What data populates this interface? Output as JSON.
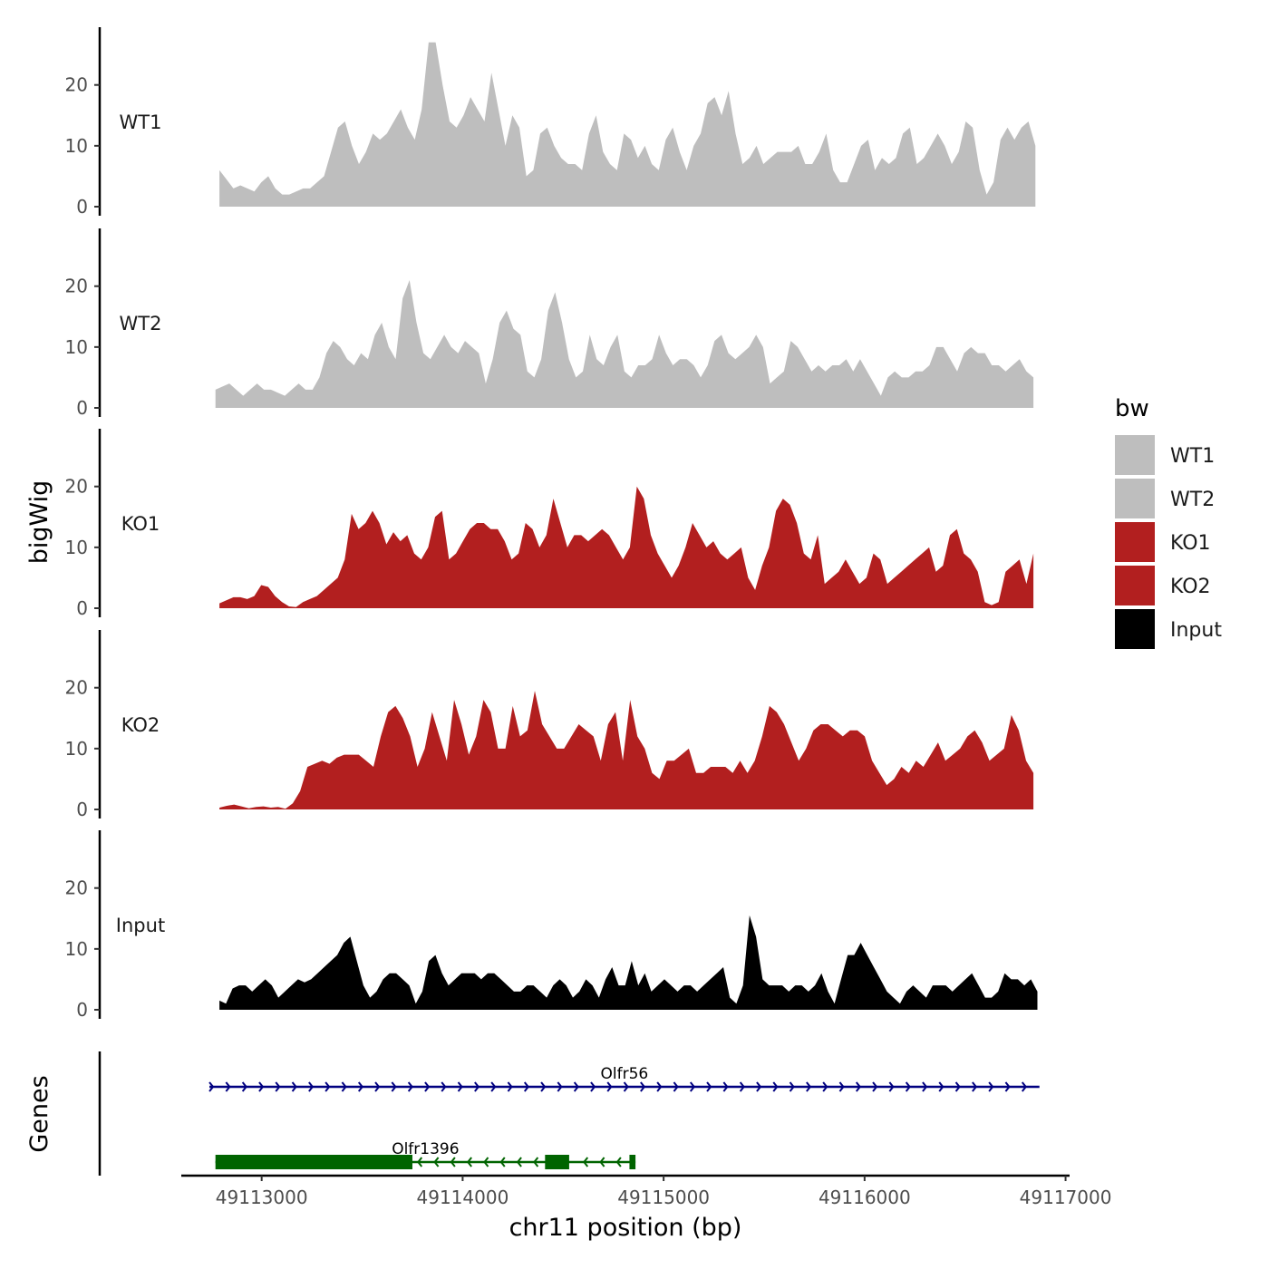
{
  "chart_data": {
    "type": "area",
    "y_axis_title": "bigWig",
    "genes_axis_title": "Genes",
    "x_axis_title": "chr11 position (bp)",
    "x_range": [
      49112600,
      49117020
    ],
    "x_ticks": [
      49113000,
      49114000,
      49115000,
      49116000,
      49117000
    ],
    "x_tick_labels": [
      "49113000",
      "49114000",
      "49115000",
      "49116000",
      "49117000"
    ],
    "y_range": [
      0,
      28
    ],
    "y_ticks": [
      0,
      10,
      20
    ],
    "y_tick_labels": [
      "0",
      "10",
      "20"
    ],
    "legend": {
      "title": "bw",
      "entries": [
        {
          "label": "WT1",
          "color": "#bebebe"
        },
        {
          "label": "WT2",
          "color": "#bebebe"
        },
        {
          "label": "KO1",
          "color": "#b21f1f"
        },
        {
          "label": "KO2",
          "color": "#b21f1f"
        },
        {
          "label": "Input",
          "color": "#000000"
        }
      ]
    },
    "tracks": [
      {
        "name": "WT1",
        "color": "#bebebe",
        "x_start": 49112790,
        "x_end": 49116850,
        "values": [
          6,
          4.5,
          3,
          3.5,
          3,
          2.5,
          4,
          5,
          3,
          2,
          2,
          2.5,
          3,
          3,
          4,
          5,
          9,
          13,
          14,
          10,
          7,
          9,
          12,
          11,
          12,
          14,
          16,
          13,
          11,
          16,
          27,
          27,
          20,
          14,
          13,
          15,
          18,
          16,
          14,
          22,
          16,
          10,
          15,
          13,
          5,
          6,
          12,
          13,
          10,
          8,
          7,
          7,
          6,
          12,
          15,
          9,
          7,
          6,
          12,
          11,
          8,
          10,
          7,
          6,
          11,
          13,
          9,
          6,
          10,
          12,
          17,
          18,
          15,
          19,
          12,
          7,
          8,
          10,
          7,
          8,
          9,
          9,
          9,
          10,
          7,
          7,
          9,
          12,
          6,
          4,
          4,
          7,
          10,
          11,
          6,
          8,
          7,
          8,
          12,
          13,
          7,
          8,
          10,
          12,
          10,
          7,
          9,
          14,
          13,
          6,
          2,
          4,
          11,
          13,
          11,
          13,
          14,
          10
        ],
        "label_color": "#1a1a1a"
      },
      {
        "name": "WT2",
        "color": "#bebebe",
        "x_start": 49112770,
        "x_end": 49116840,
        "values": [
          3,
          3.5,
          4,
          3,
          2,
          3,
          4,
          3,
          3,
          2.5,
          2,
          3,
          4,
          3,
          3,
          5,
          9,
          11,
          10,
          8,
          7,
          9,
          8,
          12,
          14,
          10,
          8,
          18,
          21,
          14,
          9,
          8,
          10,
          12,
          10,
          9,
          11,
          10,
          9,
          4,
          8,
          14,
          16,
          13,
          12,
          6,
          5,
          8,
          16,
          19,
          14,
          8,
          5,
          6,
          12,
          8,
          7,
          10,
          12,
          6,
          5,
          7,
          7,
          8,
          12,
          9,
          7,
          8,
          8,
          7,
          5,
          7,
          11,
          12,
          9,
          8,
          9,
          10,
          12,
          10,
          4,
          5,
          6,
          11,
          10,
          8,
          6,
          7,
          6,
          7,
          7,
          8,
          6,
          8,
          6,
          4,
          2,
          5,
          6,
          5,
          5,
          6,
          6,
          7,
          10,
          10,
          8,
          6,
          9,
          10,
          9,
          9,
          7,
          7,
          6,
          7,
          8,
          6,
          5
        ],
        "label_color": "#1a1a1a"
      },
      {
        "name": "KO1",
        "color": "#b21f1f",
        "x_start": 49112790,
        "x_end": 49116840,
        "values": [
          0.8,
          1.3,
          1.8,
          1.8,
          1.5,
          2,
          3.8,
          3.5,
          2,
          1,
          0.3,
          0.2,
          1,
          1.5,
          2,
          3,
          4,
          5,
          8,
          15.5,
          13,
          14,
          16,
          14,
          10.5,
          12.5,
          11,
          12,
          9,
          8,
          10,
          15,
          16,
          8,
          9,
          11,
          13,
          14,
          14,
          13,
          13,
          11,
          8,
          9,
          14,
          13,
          10,
          12,
          18,
          14,
          10,
          12,
          12,
          11,
          12,
          13,
          12,
          10,
          8,
          10,
          20,
          18,
          12,
          9,
          7,
          5,
          7,
          10,
          14,
          12,
          10,
          11,
          9,
          8,
          9,
          10,
          5,
          3,
          7,
          10,
          16,
          18,
          17,
          14,
          9,
          8,
          12,
          4,
          5,
          6,
          8,
          6,
          4,
          5,
          9,
          8,
          4,
          5,
          6,
          7,
          8,
          9,
          10,
          6,
          7,
          12,
          13,
          9,
          8,
          6,
          1,
          0.5,
          1,
          6,
          7,
          8,
          4,
          9
        ],
        "label_color": "#1a1a1a"
      },
      {
        "name": "KO2",
        "color": "#b21f1f",
        "x_start": 49112790,
        "x_end": 49116840,
        "values": [
          0.3,
          0.6,
          0.8,
          0.5,
          0.2,
          0.4,
          0.5,
          0.3,
          0.4,
          0.1,
          1,
          3,
          7,
          7.5,
          8,
          7.5,
          8.5,
          9,
          9,
          9,
          8,
          7,
          12,
          16,
          17,
          15,
          12,
          7,
          10,
          16,
          12,
          8,
          18,
          14,
          9,
          12,
          18,
          16,
          10,
          10,
          17,
          12,
          13,
          19.5,
          14,
          12,
          10,
          10,
          12,
          14,
          13,
          12,
          8,
          14,
          16,
          8,
          18,
          12,
          10,
          6,
          5,
          8,
          8,
          9,
          10,
          6,
          6,
          7,
          7,
          7,
          6,
          8,
          6,
          8,
          12,
          17,
          16,
          14,
          11,
          8,
          10,
          13,
          14,
          14,
          13,
          12,
          13,
          13,
          12,
          8,
          6,
          4,
          5,
          7,
          6,
          8,
          7,
          9,
          11,
          8,
          9,
          10,
          12,
          13,
          11,
          8,
          9,
          10,
          15.5,
          13,
          8,
          6
        ],
        "label_color": "#1a1a1a"
      },
      {
        "name": "Input",
        "color": "#000000",
        "x_start": 49112790,
        "x_end": 49116860,
        "values": [
          1.5,
          1,
          3.5,
          4,
          4,
          3,
          4,
          5,
          4,
          2,
          3,
          4,
          5,
          4.5,
          5,
          6,
          7,
          8,
          9,
          11,
          12,
          8,
          4,
          2,
          3,
          5,
          6,
          6,
          5,
          4,
          1,
          3,
          8,
          9,
          6,
          4,
          5,
          6,
          6,
          6,
          5,
          6,
          6,
          5,
          4,
          3,
          3,
          4,
          4,
          3,
          2,
          4,
          5,
          4,
          2,
          3,
          5,
          4,
          2,
          5,
          7,
          4,
          4,
          8,
          4,
          6,
          3,
          4,
          5,
          4,
          3,
          4,
          4,
          3,
          4,
          5,
          6,
          7,
          2,
          1,
          4,
          15.5,
          12,
          5,
          4,
          4,
          4,
          3,
          4,
          4,
          3,
          4,
          6,
          3,
          1,
          5,
          9,
          9,
          11,
          9,
          7,
          5,
          3,
          2,
          1,
          3,
          4,
          3,
          2,
          4,
          4,
          4,
          3,
          4,
          5,
          6,
          4,
          2,
          2,
          3,
          6,
          5,
          5,
          4,
          5,
          3
        ],
        "label_color": "#1a1a1a"
      }
    ],
    "genes": [
      {
        "name": "Olfr56",
        "strand": "+",
        "start": 49112740,
        "end": 49116870,
        "color": "#000080",
        "exons": []
      },
      {
        "name": "Olfr1396",
        "strand": "-",
        "start": 49112770,
        "end": 49114860,
        "color": "#006400",
        "exons": [
          [
            49112770,
            49113750
          ],
          [
            49114410,
            49114530
          ],
          [
            49114830,
            49114860
          ]
        ]
      }
    ]
  }
}
